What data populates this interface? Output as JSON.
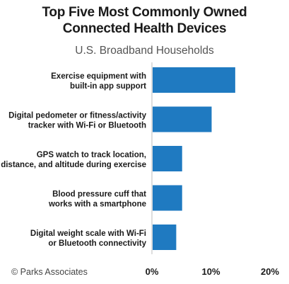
{
  "chart_data": {
    "type": "bar",
    "orientation": "horizontal",
    "title": [
      "Top Five Most Commonly Owned",
      "Connected Health Devices"
    ],
    "subtitle": "U.S. Broadband Households",
    "categories": [
      [
        "Exercise equipment with",
        "built-in app support"
      ],
      [
        "Digital pedometer or fitness/activity",
        "tracker with Wi-Fi or Bluetooth"
      ],
      [
        "GPS watch to track location,",
        "distance, and altitude during exercise"
      ],
      [
        "Blood pressure cuff that",
        "works with a smartphone"
      ],
      [
        "Digital weight scale with Wi-Fi",
        "or Bluetooth connectivity"
      ]
    ],
    "values": [
      14,
      10,
      5,
      5,
      4
    ],
    "xlim": [
      0,
      20
    ],
    "xticks": [
      "0%",
      "10%",
      "20%"
    ],
    "xlabel": "",
    "ylabel": "",
    "grid": false,
    "bar_color": "#1f7ac1"
  },
  "footer": "© Parks Associates"
}
